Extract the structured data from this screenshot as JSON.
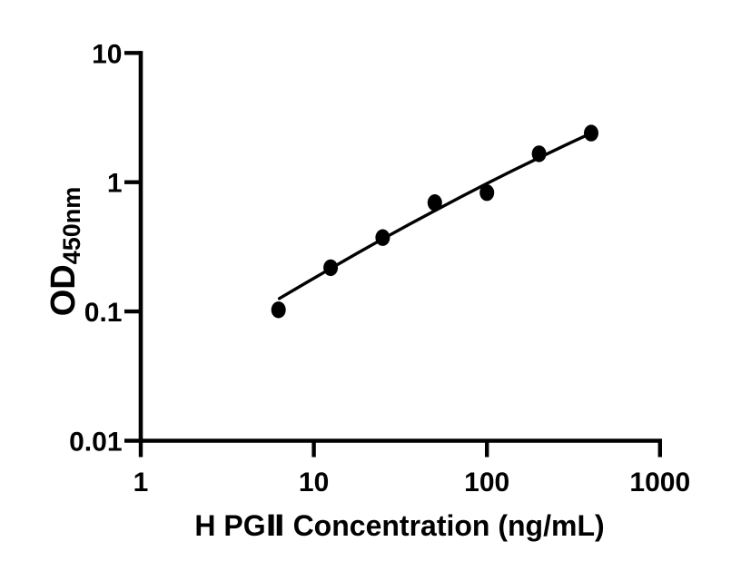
{
  "figure": {
    "background_color": "#ffffff",
    "ink_color": "#000000"
  },
  "chart_data": {
    "type": "scatter",
    "title": "",
    "xlabel": "H PGⅡ Concentration (ng/mL)",
    "ylabel_main": "OD",
    "ylabel_sub": "450nm",
    "x_scale": "log10",
    "y_scale": "log10",
    "xlim": [
      1,
      1000
    ],
    "ylim": [
      0.01,
      10
    ],
    "x_ticks": [
      1,
      10,
      100,
      1000
    ],
    "x_tick_labels": [
      "1",
      "10",
      "100",
      "1000"
    ],
    "y_ticks": [
      10,
      1,
      0.1,
      0.01
    ],
    "y_tick_labels": [
      "10",
      "1",
      "0.1",
      "0.01"
    ],
    "grid": false,
    "legend": false,
    "marker": "filled-ellipse",
    "marker_color": "#000000",
    "line_color": "#000000",
    "points": [
      {
        "conc_ng_ml": 6.25,
        "od": 0.103
      },
      {
        "conc_ng_ml": 12.5,
        "od": 0.218
      },
      {
        "conc_ng_ml": 25,
        "od": 0.373
      },
      {
        "conc_ng_ml": 50,
        "od": 0.695
      },
      {
        "conc_ng_ml": 100,
        "od": 0.83
      },
      {
        "conc_ng_ml": 200,
        "od": 1.66
      },
      {
        "conc_ng_ml": 400,
        "od": 2.4
      }
    ],
    "fit_curve": [
      [
        6.32,
        0.126
      ],
      [
        8.91,
        0.165
      ],
      [
        12.5,
        0.215
      ],
      [
        17.8,
        0.282
      ],
      [
        25.0,
        0.364
      ],
      [
        35.5,
        0.471
      ],
      [
        50.0,
        0.602
      ],
      [
        70.8,
        0.769
      ],
      [
        100,
        0.977
      ],
      [
        141,
        1.229
      ],
      [
        200,
        1.544
      ],
      [
        282,
        1.924
      ],
      [
        400,
        2.393
      ]
    ]
  }
}
